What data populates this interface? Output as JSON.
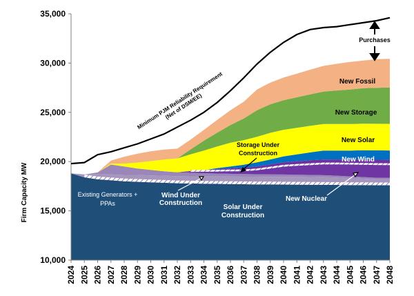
{
  "chart_data": {
    "type": "area",
    "ylabel": "Firm Capacity MW",
    "ylim": [
      10000,
      35000
    ],
    "yticks": [
      10000,
      15000,
      20000,
      25000,
      30000,
      35000
    ],
    "x": [
      "2024",
      "2025",
      "2026",
      "2027",
      "2028",
      "2029",
      "2030",
      "2031",
      "2032",
      "2033",
      "2034",
      "2035",
      "2036",
      "2037",
      "2038",
      "2039",
      "2040",
      "2041",
      "2042",
      "2043",
      "2044",
      "2045",
      "2046",
      "2047",
      "2048"
    ],
    "stack_order": [
      "existing",
      "new_nuclear",
      "solar_uc",
      "wind_uc",
      "storage_uc",
      "new_wind",
      "new_solar",
      "new_storage",
      "new_fossil"
    ],
    "series": [
      {
        "key": "existing",
        "name": "Existing Generators + PPAs",
        "color": "#1F4E79",
        "values": [
          18800,
          18400,
          18200,
          18100,
          18000,
          17950,
          17900,
          17850,
          17800,
          17780,
          17760,
          17740,
          17720,
          17700,
          17690,
          17680,
          17670,
          17660,
          17650,
          17640,
          17630,
          17620,
          17610,
          17600,
          17600
        ]
      },
      {
        "key": "new_nuclear",
        "name": "New Nuclear",
        "color": "#A596BD",
        "values": [
          0,
          300,
          500,
          600,
          650,
          700,
          700,
          720,
          720,
          730,
          740,
          750,
          760,
          770,
          780,
          780,
          790,
          790,
          790,
          780,
          750,
          700,
          650,
          600,
          600
        ]
      },
      {
        "key": "solar_uc",
        "name": "Solar Under Construction",
        "color": "#9A86B8",
        "values": [
          0,
          0,
          200,
          1000,
          850,
          650,
          550,
          450,
          400,
          350,
          320,
          300,
          280,
          260,
          250,
          240,
          230,
          220,
          210,
          200,
          190,
          180,
          170,
          160,
          150
        ]
      },
      {
        "key": "wind_uc",
        "name": "Wind Under Construction",
        "color": "#6F35A3",
        "values": [
          0,
          0,
          0,
          0,
          0,
          0,
          0,
          0,
          0,
          100,
          150,
          200,
          250,
          300,
          400,
          600,
          800,
          900,
          1000,
          1100,
          1150,
          1200,
          1250,
          1300,
          1300
        ]
      },
      {
        "key": "storage_uc",
        "name": "Storage Under Construction",
        "color": "#7030A0",
        "values": [
          0,
          0,
          0,
          0,
          0,
          0,
          0,
          0,
          0,
          80,
          150,
          250,
          300,
          350,
          400,
          420,
          440,
          460,
          480,
          490,
          500,
          510,
          520,
          530,
          530
        ]
      },
      {
        "key": "new_wind",
        "name": "New Wind",
        "color": "#0070C0",
        "values": [
          0,
          0,
          0,
          0,
          0,
          0,
          0,
          0,
          0,
          0,
          0,
          100,
          200,
          300,
          400,
          500,
          600,
          700,
          800,
          900,
          900,
          900,
          950,
          950,
          950
        ]
      },
      {
        "key": "new_solar",
        "name": "New Solar",
        "color": "#FFFF00",
        "values": [
          0,
          0,
          0,
          100,
          300,
          600,
          900,
          1200,
          1400,
          1700,
          2000,
          2200,
          2400,
          2500,
          2600,
          2700,
          2700,
          2700,
          2700,
          2700,
          2700,
          2700,
          2700,
          2700,
          2700
        ]
      },
      {
        "key": "new_storage",
        "name": "New Storage",
        "color": "#70AD47",
        "values": [
          0,
          0,
          0,
          0,
          0,
          0,
          0,
          0,
          0,
          500,
          1000,
          1400,
          1800,
          2200,
          2700,
          2900,
          3000,
          3100,
          3200,
          3300,
          3400,
          3500,
          3600,
          3650,
          3700
        ]
      },
      {
        "key": "new_fossil",
        "name": "New Fossil",
        "color": "#F4B183",
        "values": [
          0,
          0,
          0,
          300,
          700,
          900,
          1000,
          1000,
          1000,
          1000,
          1100,
          1300,
          1500,
          1700,
          2100,
          2200,
          2300,
          2400,
          2500,
          2600,
          2700,
          2800,
          2800,
          2900,
          2900
        ]
      }
    ],
    "requirement_line": {
      "name": "Minimum PJM Reliability Requirement (Net of DSM/EE)",
      "color": "#000000",
      "values": [
        19800,
        19900,
        20700,
        21000,
        21400,
        21800,
        22300,
        22800,
        23500,
        24200,
        25000,
        26000,
        27200,
        28500,
        29900,
        31100,
        32100,
        32900,
        33400,
        33600,
        33700,
        33900,
        34100,
        34300,
        34600
      ]
    },
    "annotations": {
      "purchases": "Purchases",
      "new_fossil": "New Fossil",
      "new_storage": "New Storage",
      "new_solar": "New Solar",
      "new_wind": "New Wind",
      "new_nuclear": "New Nuclear",
      "existing_1": "Existing Generators +",
      "existing_2": "PPAs",
      "wind_uc_1": "Wind Under",
      "wind_uc_2": "Construction",
      "solar_uc_1": "Solar Under",
      "solar_uc_2": "Construction",
      "storage_uc_1": "Storage Under",
      "storage_uc_2": "Construction",
      "requirement_1": "Minimum PJM Reliability Requirement",
      "requirement_2": "(Net of DSM/EE)"
    }
  }
}
